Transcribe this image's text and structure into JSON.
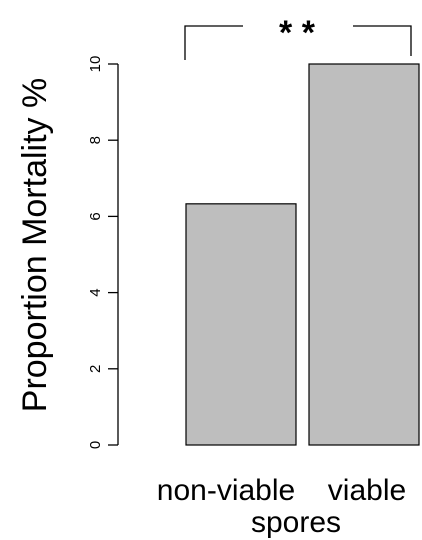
{
  "chart_data": {
    "type": "bar",
    "categories": [
      "non-viable",
      "viable"
    ],
    "values": [
      6.33,
      10.0
    ],
    "title": "",
    "xlabel": "spores",
    "ylabel": "Proportion Mortality %",
    "ylim": [
      0,
      10
    ],
    "yticks": [
      "0",
      "2",
      "4",
      "6",
      "8",
      "10"
    ],
    "bar_color": "#bebebe",
    "grid": false,
    "annotation": "* *"
  }
}
